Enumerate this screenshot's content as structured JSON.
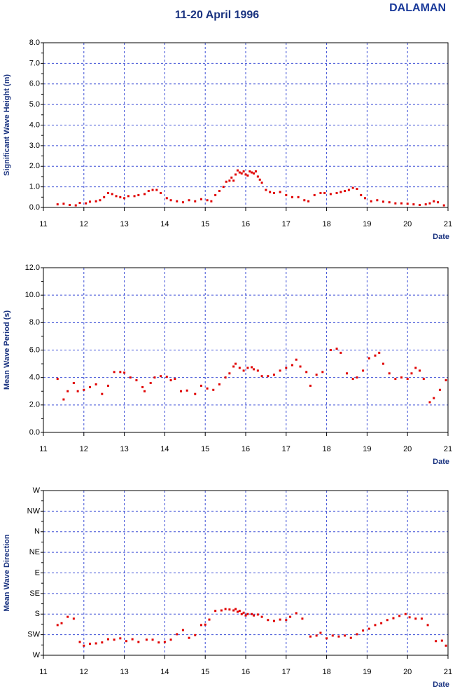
{
  "title": "11-20 April 1996",
  "station": "DALAMAN",
  "chart_data": [
    {
      "type": "scatter",
      "ylabel": "Significant Wave Height (m)",
      "xlabel": "Date",
      "color": "#e00000",
      "grid": true,
      "xlim": [
        11,
        21
      ],
      "xticks": [
        11,
        12,
        13,
        14,
        15,
        16,
        17,
        18,
        19,
        20,
        21
      ],
      "ylim": [
        0,
        8
      ],
      "yticks": [
        {
          "value": 0,
          "label": "0.0"
        },
        {
          "value": 1,
          "label": "1.0"
        },
        {
          "value": 2,
          "label": "2.0"
        },
        {
          "value": 3,
          "label": "3.0"
        },
        {
          "value": 4,
          "label": "4.0"
        },
        {
          "value": 5,
          "label": "5.0"
        },
        {
          "value": 6,
          "label": "6.0"
        },
        {
          "value": 7,
          "label": "7.0"
        },
        {
          "value": 8,
          "label": "8.0"
        }
      ],
      "x": [
        11.35,
        11.5,
        11.65,
        11.8,
        11.9,
        12.05,
        12.15,
        12.3,
        12.4,
        12.5,
        12.6,
        12.7,
        12.8,
        12.9,
        13.0,
        13.1,
        13.25,
        13.35,
        13.5,
        13.6,
        13.7,
        13.8,
        13.9,
        14.05,
        14.15,
        14.3,
        14.45,
        14.6,
        14.75,
        14.9,
        15.05,
        15.15,
        15.25,
        15.35,
        15.45,
        15.52,
        15.6,
        15.65,
        15.7,
        15.75,
        15.8,
        15.85,
        15.9,
        15.95,
        16.0,
        16.05,
        16.1,
        16.15,
        16.2,
        16.25,
        16.3,
        16.35,
        16.4,
        16.5,
        16.6,
        16.7,
        16.85,
        17.0,
        17.15,
        17.3,
        17.45,
        17.55,
        17.7,
        17.85,
        17.95,
        18.1,
        18.25,
        18.35,
        18.45,
        18.55,
        18.65,
        18.75,
        18.85,
        18.95,
        19.1,
        19.25,
        19.4,
        19.55,
        19.7,
        19.85,
        20.0,
        20.15,
        20.3,
        20.45,
        20.55,
        20.65,
        20.75,
        20.9
      ],
      "values": [
        0.15,
        0.18,
        0.12,
        0.1,
        0.22,
        0.2,
        0.28,
        0.3,
        0.35,
        0.5,
        0.7,
        0.65,
        0.55,
        0.5,
        0.45,
        0.55,
        0.55,
        0.6,
        0.65,
        0.8,
        0.85,
        0.85,
        0.7,
        0.45,
        0.35,
        0.3,
        0.25,
        0.35,
        0.3,
        0.4,
        0.35,
        0.3,
        0.6,
        0.8,
        1.0,
        1.25,
        1.3,
        1.45,
        1.3,
        1.6,
        1.8,
        1.7,
        1.65,
        1.75,
        1.6,
        1.55,
        1.75,
        1.7,
        1.65,
        1.75,
        1.5,
        1.35,
        1.2,
        0.85,
        0.75,
        0.7,
        0.75,
        0.6,
        0.5,
        0.5,
        0.35,
        0.3,
        0.6,
        0.7,
        0.7,
        0.65,
        0.7,
        0.75,
        0.8,
        0.85,
        0.95,
        0.9,
        0.6,
        0.45,
        0.3,
        0.35,
        0.28,
        0.25,
        0.2,
        0.2,
        0.18,
        0.15,
        0.12,
        0.15,
        0.2,
        0.3,
        0.25,
        0.1
      ]
    },
    {
      "type": "scatter",
      "ylabel": "Mean Wave Period (s)",
      "xlabel": "Date",
      "color": "#e00000",
      "grid": true,
      "xlim": [
        11,
        21
      ],
      "xticks": [
        11,
        12,
        13,
        14,
        15,
        16,
        17,
        18,
        19,
        20,
        21
      ],
      "ylim": [
        0,
        12
      ],
      "yticks": [
        {
          "value": 0,
          "label": "0.0"
        },
        {
          "value": 2,
          "label": "2.0"
        },
        {
          "value": 4,
          "label": "4.0"
        },
        {
          "value": 6,
          "label": "6.0"
        },
        {
          "value": 8,
          "label": "8.0"
        },
        {
          "value": 10,
          "label": "10.0"
        },
        {
          "value": 12,
          "label": "12.0"
        }
      ],
      "x": [
        11.35,
        11.5,
        11.6,
        11.75,
        11.85,
        12.0,
        12.15,
        12.3,
        12.45,
        12.6,
        12.75,
        12.9,
        13.0,
        13.15,
        13.3,
        13.45,
        13.5,
        13.65,
        13.75,
        13.9,
        14.05,
        14.15,
        14.25,
        14.4,
        14.55,
        14.75,
        14.9,
        15.05,
        15.2,
        15.35,
        15.5,
        15.6,
        15.7,
        15.75,
        15.85,
        15.95,
        16.05,
        16.15,
        16.2,
        16.3,
        16.4,
        16.55,
        16.7,
        16.85,
        17.0,
        17.15,
        17.25,
        17.35,
        17.5,
        17.6,
        17.75,
        17.9,
        18.1,
        18.25,
        18.35,
        18.5,
        18.65,
        18.75,
        18.9,
        19.05,
        19.2,
        19.3,
        19.4,
        19.55,
        19.7,
        19.85,
        20.0,
        20.1,
        20.2,
        20.3,
        20.4,
        20.55,
        20.65,
        20.8,
        20.95
      ],
      "values": [
        3.9,
        2.4,
        3.0,
        3.6,
        3.0,
        3.1,
        3.3,
        3.5,
        2.8,
        3.4,
        4.4,
        4.4,
        4.35,
        4.0,
        3.8,
        3.3,
        3.0,
        3.6,
        4.0,
        4.1,
        4.05,
        3.8,
        3.9,
        3.0,
        3.05,
        2.8,
        3.4,
        3.2,
        3.1,
        3.5,
        4.0,
        4.3,
        4.8,
        5.0,
        4.7,
        4.5,
        4.7,
        4.75,
        4.6,
        4.5,
        4.1,
        4.1,
        4.2,
        4.5,
        4.7,
        4.9,
        5.3,
        4.8,
        4.4,
        3.4,
        4.2,
        4.4,
        6.0,
        6.1,
        5.8,
        4.3,
        3.9,
        4.0,
        4.5,
        5.4,
        5.6,
        5.8,
        5.0,
        4.3,
        3.9,
        4.0,
        3.9,
        4.3,
        4.7,
        4.5,
        3.9,
        2.2,
        2.5,
        3.1,
        3.8
      ]
    },
    {
      "type": "scatter",
      "ylabel": "Mean Wave Direction",
      "xlabel": "Date",
      "color": "#e00000",
      "grid": true,
      "xlim": [
        11,
        21
      ],
      "xticks": [
        11,
        12,
        13,
        14,
        15,
        16,
        17,
        18,
        19,
        20,
        21
      ],
      "ylim": [
        270,
        -90
      ],
      "yticks": [
        {
          "value": 270,
          "label": "W"
        },
        {
          "value": 225,
          "label": "SW"
        },
        {
          "value": 180,
          "label": "S"
        },
        {
          "value": 135,
          "label": "SE"
        },
        {
          "value": 90,
          "label": "E"
        },
        {
          "value": 45,
          "label": "NE"
        },
        {
          "value": 0,
          "label": "N"
        },
        {
          "value": -45,
          "label": "NW"
        },
        {
          "value": -90,
          "label": "W"
        }
      ],
      "x": [
        11.35,
        11.45,
        11.6,
        11.75,
        11.9,
        12.0,
        12.15,
        12.3,
        12.45,
        12.6,
        12.75,
        12.9,
        13.05,
        13.2,
        13.35,
        13.55,
        13.7,
        13.85,
        14.0,
        14.15,
        14.3,
        14.45,
        14.6,
        14.75,
        14.9,
        15.0,
        15.1,
        15.25,
        15.4,
        15.5,
        15.6,
        15.7,
        15.75,
        15.8,
        15.85,
        15.9,
        15.95,
        16.0,
        16.05,
        16.15,
        16.2,
        16.3,
        16.4,
        16.55,
        16.7,
        16.85,
        17.0,
        17.1,
        17.25,
        17.4,
        17.6,
        17.75,
        17.85,
        18.0,
        18.15,
        18.3,
        18.45,
        18.6,
        18.75,
        18.9,
        19.05,
        19.2,
        19.35,
        19.5,
        19.65,
        19.8,
        19.95,
        20.05,
        20.2,
        20.35,
        20.5,
        20.7,
        20.85,
        20.95
      ],
      "values": [
        204,
        200,
        186,
        190,
        241,
        249,
        245,
        244,
        242,
        235,
        236,
        233,
        239,
        235,
        241,
        236,
        236,
        242,
        241,
        236,
        224,
        215,
        232,
        226,
        204,
        203,
        192,
        173,
        172,
        169,
        170,
        172,
        169,
        175,
        173,
        180,
        177,
        183,
        180,
        180,
        183,
        181,
        186,
        193,
        195,
        192,
        193,
        186,
        178,
        190,
        229,
        227,
        221,
        233,
        227,
        229,
        227,
        232,
        224,
        216,
        212,
        204,
        200,
        193,
        189,
        184,
        180,
        187,
        190,
        190,
        204,
        239,
        238,
        249
      ]
    }
  ]
}
